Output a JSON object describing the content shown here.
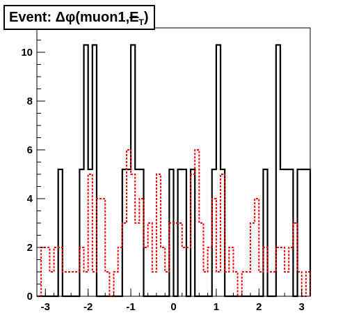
{
  "chart_data": {
    "type": "histogram",
    "title": "Event: Δφ(muon1,E̸T)",
    "title_parts": {
      "prefix": "Event: Δφ(muon1,",
      "met": "E",
      "sub": "T",
      "suffix": ")"
    },
    "xlim": [
      -3.2,
      3.2
    ],
    "ylim": [
      0,
      11
    ],
    "x_ticks": [
      -3,
      -2,
      -1,
      0,
      1,
      2,
      3
    ],
    "y_ticks": [
      0,
      2,
      4,
      6,
      8,
      10
    ],
    "grid": false,
    "series": [
      {
        "color": "#000000",
        "style": "solid",
        "edges": [
          -3.2,
          -2.7,
          -2.6,
          -2.2,
          -2.1,
          -2.0,
          -1.9,
          -1.8,
          -1.2,
          -1.0,
          -0.9,
          -0.7,
          -0.1,
          0.0,
          0.1,
          0.3,
          0.4,
          0.5,
          0.9,
          1.0,
          1.1,
          1.2,
          2.1,
          2.2,
          2.4,
          2.5,
          2.8,
          2.9,
          3.2
        ],
        "values": [
          0,
          5.2,
          0,
          5.2,
          10.3,
          5.2,
          10.3,
          0,
          5.2,
          10.3,
          5.2,
          0,
          5.2,
          0,
          5.2,
          0,
          5.2,
          0,
          5.2,
          10.3,
          5.2,
          0,
          5.2,
          0,
          10.3,
          5.2,
          0,
          5.2
        ]
      },
      {
        "color": "#ff0000",
        "style": "dotted",
        "edges": [
          -3.2,
          -3.1,
          -2.9,
          -2.8,
          -2.6,
          -2.3,
          -2.2,
          -2.1,
          -2.0,
          -1.9,
          -1.8,
          -1.6,
          -1.5,
          -1.4,
          -1.3,
          -1.2,
          -1.1,
          -1.0,
          -0.9,
          -0.8,
          -0.7,
          -0.6,
          -0.5,
          -0.4,
          -0.3,
          -0.2,
          -0.1,
          0.0,
          0.2,
          0.3,
          0.4,
          0.5,
          0.6,
          0.7,
          0.8,
          0.9,
          1.0,
          1.1,
          1.2,
          1.3,
          1.4,
          1.5,
          1.6,
          1.8,
          1.9,
          2.0,
          2.1,
          2.2,
          2.3,
          2.4,
          2.5,
          2.6,
          2.7,
          2.8,
          2.9,
          3.0,
          3.1,
          3.2
        ],
        "values": [
          0,
          2,
          1,
          2,
          1,
          1,
          2,
          1,
          5,
          1,
          4,
          1,
          0,
          1,
          2,
          3,
          6,
          5,
          3,
          4,
          2,
          3,
          1,
          5,
          2,
          1,
          3,
          3,
          2,
          2,
          5,
          6,
          3,
          1,
          2,
          4,
          1,
          5,
          1,
          2,
          1,
          0,
          1,
          3,
          4,
          1,
          2,
          1,
          1,
          2,
          2,
          1,
          2,
          3,
          1,
          0,
          1
        ]
      }
    ]
  }
}
